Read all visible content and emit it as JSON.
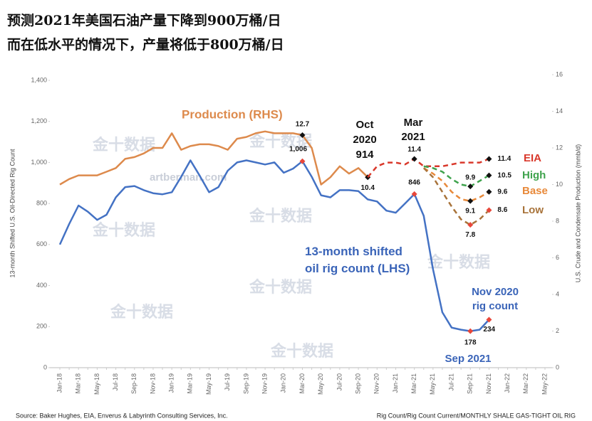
{
  "chart_data": {
    "type": "line",
    "title": "预测2021年美国石油产量下降到900万桶/日",
    "subtitle": "而在低水平的情况下，产量将低于800万桶/日",
    "ylabel": "13-month Shifted U.S. Oil-Directed Rig Count",
    "y2label": "U.S. Crude and Condensate Production (mmb/d)",
    "source": "Source: Baker Hughes, EIA, Enverus & Labyrinth Consulting Services, Inc.",
    "note": "Rig Count/Rig Count Current/MONTHLY SHALE GAS-TIGHT OIL RIG",
    "watermarks": [
      "artberman.com",
      "金十数据",
      "金十数据",
      "金十数据",
      "金十数据",
      "金十数据",
      "金十数据",
      "金十数据",
      "金十数据"
    ],
    "annotations": [
      "Oct",
      "2020",
      "914",
      "Mar",
      "2021",
      "Nov 2020",
      "rig count",
      "Sep 2021"
    ],
    "categories": [
      "Jan-18",
      null,
      "Mar-18",
      null,
      "May-18",
      null,
      "Jul-18",
      null,
      "Sep-18",
      null,
      "Nov-18",
      null,
      "Jan-19",
      null,
      "Mar-19",
      null,
      "May-19",
      null,
      "Jul-19",
      null,
      "Sep-19",
      null,
      "Nov-19",
      null,
      "Jan-20",
      null,
      "Mar-20",
      null,
      "May-20",
      null,
      "Jul-20",
      null,
      "Sep-20",
      null,
      "Nov-20",
      null,
      "Jan-21",
      null,
      "Mar-21",
      null,
      "May-21",
      null,
      "Jul-21",
      null,
      "Sep-21",
      null,
      "Nov-21",
      null,
      "Jan-22",
      null,
      "Mar-22",
      null,
      "May-22"
    ],
    "ylim": [
      0,
      1400
    ],
    "yticks": [
      0,
      200,
      400,
      600,
      800,
      {
        "value": 1000,
        "label": "1,000"
      },
      {
        "value": 1200,
        "label": "1,200"
      },
      {
        "value": 1400,
        "label": "1,400"
      }
    ],
    "y2lim": [
      0,
      16
    ],
    "y2ticks": [
      0,
      2,
      4,
      6,
      8,
      10,
      12,
      14,
      16
    ],
    "series": [
      {
        "name": "13-month shifted oil rig count (LHS)",
        "color": "#4472c4",
        "marker_color": "#e8473a",
        "values": [
          600,
          700,
          790,
          760,
          720,
          745,
          830,
          880,
          885,
          865,
          850,
          845,
          855,
          930,
          1010,
          935,
          855,
          880,
          960,
          1000,
          1010,
          1000,
          990,
          1000,
          950,
          970,
          1006,
          930,
          840,
          830,
          865,
          865,
          860,
          820,
          810,
          765,
          755,
          800,
          846,
          740,
          480,
          270,
          195,
          185,
          178,
          185,
          234,
          null,
          null,
          null,
          null,
          null,
          null
        ],
        "value_labels": [
          null,
          null,
          null,
          null,
          null,
          null,
          null,
          null,
          null,
          null,
          null,
          null,
          null,
          null,
          null,
          null,
          null,
          null,
          null,
          null,
          null,
          null,
          null,
          null,
          null,
          null,
          "1,006",
          null,
          null,
          null,
          null,
          null,
          null,
          null,
          null,
          null,
          null,
          null,
          "846",
          null,
          null,
          null,
          null,
          null,
          "178",
          null,
          "234",
          null,
          null,
          null,
          null,
          null,
          null
        ]
      },
      {
        "name": "Production (RHS)",
        "axis": "y2",
        "color": "#dd8a4c",
        "marker_color": "#111111",
        "values": [
          10.0,
          10.3,
          10.5,
          10.5,
          10.5,
          10.7,
          10.9,
          11.4,
          11.5,
          11.7,
          12.0,
          12.0,
          12.8,
          11.9,
          12.1,
          12.2,
          12.2,
          12.1,
          11.9,
          12.5,
          12.6,
          12.8,
          12.9,
          12.8,
          12.8,
          12.8,
          12.7,
          12.0,
          10.0,
          10.4,
          11.0,
          10.6,
          10.9,
          10.4,
          null,
          null,
          null,
          null,
          null,
          null,
          null,
          null,
          null,
          null,
          null,
          null,
          null,
          null,
          null,
          null,
          null,
          null,
          null
        ],
        "value_labels": [
          null,
          null,
          null,
          null,
          null,
          null,
          null,
          null,
          null,
          null,
          null,
          null,
          null,
          null,
          null,
          null,
          null,
          null,
          null,
          null,
          null,
          null,
          null,
          null,
          null,
          null,
          "12.7",
          null,
          null,
          null,
          null,
          null,
          null,
          "10.4",
          null,
          null,
          null,
          null,
          null,
          null,
          null,
          null,
          null,
          null,
          null,
          null,
          null,
          null,
          null,
          null,
          null,
          null,
          null
        ]
      },
      {
        "name": "EIA",
        "axis": "y2",
        "dash": true,
        "color": "#d9382b",
        "marker_color": "#111111",
        "values": [
          null,
          null,
          null,
          null,
          null,
          null,
          null,
          null,
          null,
          null,
          null,
          null,
          null,
          null,
          null,
          null,
          null,
          null,
          null,
          null,
          null,
          null,
          null,
          null,
          null,
          null,
          null,
          null,
          null,
          null,
          null,
          null,
          null,
          10.4,
          11.0,
          11.2,
          11.2,
          11.1,
          11.4,
          11.0,
          11.0,
          11.0,
          11.1,
          11.2,
          11.2,
          11.2,
          11.4,
          null,
          null,
          null,
          null,
          null,
          null
        ],
        "value_labels": [
          null,
          null,
          null,
          null,
          null,
          null,
          null,
          null,
          null,
          null,
          null,
          null,
          null,
          null,
          null,
          null,
          null,
          null,
          null,
          null,
          null,
          null,
          null,
          null,
          null,
          null,
          null,
          null,
          null,
          null,
          null,
          null,
          null,
          null,
          null,
          null,
          null,
          null,
          "11.4",
          null,
          null,
          null,
          null,
          null,
          null,
          null,
          "11.4",
          null,
          null,
          null,
          null,
          null,
          null
        ]
      },
      {
        "name": "High",
        "axis": "y2",
        "dash": true,
        "color": "#3fa34d",
        "marker_color": "#111111",
        "values": [
          null,
          null,
          null,
          null,
          null,
          null,
          null,
          null,
          null,
          null,
          null,
          null,
          null,
          null,
          null,
          null,
          null,
          null,
          null,
          null,
          null,
          null,
          null,
          null,
          null,
          null,
          null,
          null,
          null,
          null,
          null,
          null,
          null,
          null,
          null,
          null,
          null,
          null,
          null,
          11.0,
          10.9,
          10.7,
          10.3,
          10.0,
          9.9,
          10.2,
          10.5,
          null,
          null,
          null,
          null,
          null,
          null
        ],
        "value_labels": [
          null,
          null,
          null,
          null,
          null,
          null,
          null,
          null,
          null,
          null,
          null,
          null,
          null,
          null,
          null,
          null,
          null,
          null,
          null,
          null,
          null,
          null,
          null,
          null,
          null,
          null,
          null,
          null,
          null,
          null,
          null,
          null,
          null,
          null,
          null,
          null,
          null,
          null,
          null,
          null,
          null,
          null,
          null,
          null,
          "9.9",
          null,
          "10.5",
          null,
          null,
          null,
          null,
          null,
          null
        ]
      },
      {
        "name": "Base",
        "axis": "y2",
        "dash": true,
        "color": "#e8893a",
        "marker_color": "#111111",
        "values": [
          null,
          null,
          null,
          null,
          null,
          null,
          null,
          null,
          null,
          null,
          null,
          null,
          null,
          null,
          null,
          null,
          null,
          null,
          null,
          null,
          null,
          null,
          null,
          null,
          null,
          null,
          null,
          null,
          null,
          null,
          null,
          null,
          null,
          null,
          null,
          null,
          null,
          null,
          null,
          10.9,
          10.6,
          10.2,
          9.6,
          9.2,
          9.1,
          9.3,
          9.6,
          null,
          null,
          null,
          null,
          null,
          null
        ],
        "value_labels": [
          null,
          null,
          null,
          null,
          null,
          null,
          null,
          null,
          null,
          null,
          null,
          null,
          null,
          null,
          null,
          null,
          null,
          null,
          null,
          null,
          null,
          null,
          null,
          null,
          null,
          null,
          null,
          null,
          null,
          null,
          null,
          null,
          null,
          null,
          null,
          null,
          null,
          null,
          null,
          null,
          null,
          null,
          null,
          null,
          "9.1",
          null,
          "9.6",
          null,
          null,
          null,
          null,
          null,
          null
        ]
      },
      {
        "name": "Low",
        "axis": "y2",
        "dash": true,
        "color": "#a8733a",
        "marker_color": "#e8473a",
        "values": [
          null,
          null,
          null,
          null,
          null,
          null,
          null,
          null,
          null,
          null,
          null,
          null,
          null,
          null,
          null,
          null,
          null,
          null,
          null,
          null,
          null,
          null,
          null,
          null,
          null,
          null,
          null,
          null,
          null,
          null,
          null,
          null,
          null,
          null,
          null,
          null,
          null,
          null,
          null,
          10.9,
          10.4,
          9.6,
          8.8,
          8.1,
          7.8,
          8.1,
          8.6,
          null,
          null,
          null,
          null,
          null,
          null
        ],
        "value_labels": [
          null,
          null,
          null,
          null,
          null,
          null,
          null,
          null,
          null,
          null,
          null,
          null,
          null,
          null,
          null,
          null,
          null,
          null,
          null,
          null,
          null,
          null,
          null,
          null,
          null,
          null,
          null,
          null,
          null,
          null,
          null,
          null,
          null,
          null,
          null,
          null,
          null,
          null,
          null,
          null,
          null,
          null,
          null,
          null,
          "7.8",
          null,
          "8.6",
          null,
          null,
          null,
          null,
          null,
          null
        ]
      }
    ]
  }
}
